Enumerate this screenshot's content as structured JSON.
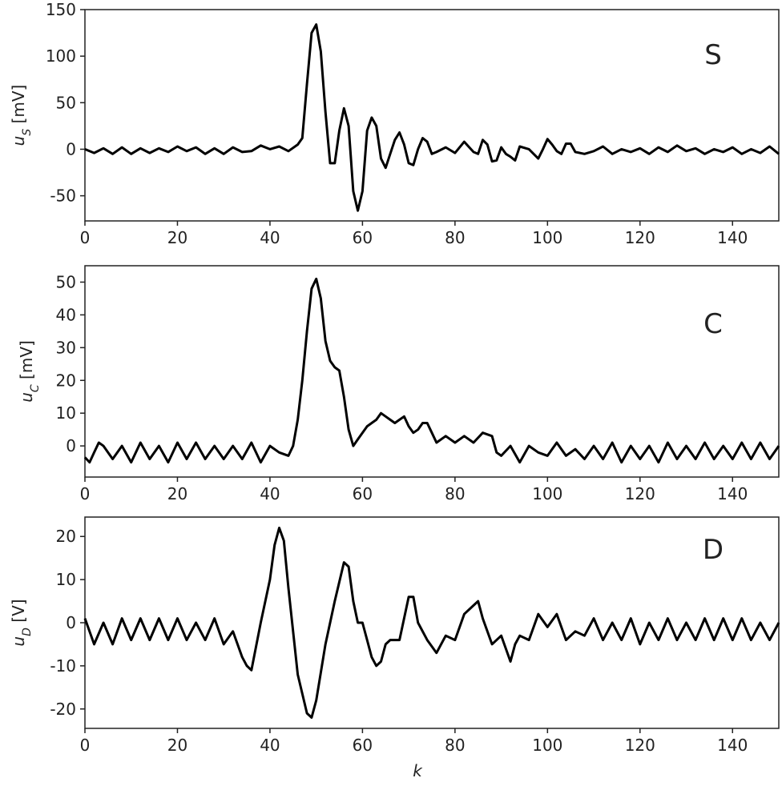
{
  "chart_data": [
    {
      "type": "line",
      "panel_tag": "S",
      "ylabel_symbol": "u",
      "ylabel_sub": "S",
      "ylabel_unit": " [mV]",
      "xlim": [
        0,
        150
      ],
      "ylim": [
        -77,
        150
      ],
      "xticks": [
        0,
        20,
        40,
        60,
        80,
        100,
        120,
        140
      ],
      "yticks": [
        -50,
        0,
        50,
        100,
        150
      ],
      "grid": false,
      "color": "#000000",
      "series": [
        {
          "x": [
            0,
            2,
            4,
            6,
            8,
            10,
            12,
            14,
            16,
            18,
            20,
            22,
            24,
            26,
            28,
            30,
            32,
            34,
            36,
            38,
            40,
            42,
            44,
            46,
            47,
            48,
            49,
            50,
            51,
            52,
            53,
            54,
            55,
            56,
            57,
            58,
            59,
            60,
            61,
            62,
            63,
            64,
            65,
            66,
            67,
            68,
            69,
            70,
            71,
            72,
            73,
            74,
            75,
            76,
            78,
            80,
            82,
            84,
            85,
            86,
            87,
            88,
            89,
            90,
            91,
            92,
            93,
            94,
            96,
            98,
            99,
            100,
            101,
            102,
            103,
            104,
            105,
            106,
            108,
            110,
            112,
            114,
            116,
            118,
            120,
            122,
            124,
            126,
            128,
            130,
            132,
            134,
            136,
            138,
            140,
            142,
            144,
            146,
            148,
            150
          ],
          "y": [
            0,
            -4,
            1,
            -5,
            2,
            -5,
            1,
            -4,
            1,
            -3,
            3,
            -2,
            2,
            -5,
            1,
            -5,
            2,
            -3,
            -2,
            4,
            0,
            3,
            -2,
            5,
            12,
            70,
            125,
            134,
            105,
            40,
            -15,
            -15,
            20,
            44,
            25,
            -45,
            -66,
            -45,
            20,
            34,
            25,
            -10,
            -20,
            -5,
            10,
            18,
            5,
            -15,
            -17,
            0,
            12,
            8,
            -5,
            -3,
            2,
            -4,
            8,
            -3,
            -5,
            10,
            5,
            -13,
            -12,
            2,
            -5,
            -8,
            -12,
            3,
            0,
            -10,
            0,
            11,
            5,
            -2,
            -5,
            6,
            6,
            -3,
            -5,
            -2,
            3,
            -5,
            0,
            -3,
            1,
            -5,
            2,
            -3,
            4,
            -2,
            1,
            -5,
            0,
            -3,
            2,
            -5,
            0,
            -4,
            3,
            -5
          ]
        }
      ]
    },
    {
      "type": "line",
      "panel_tag": "C",
      "ylabel_symbol": "u",
      "ylabel_sub": "C",
      "ylabel_unit": " [mV]",
      "xlim": [
        0,
        150
      ],
      "ylim": [
        -9.5,
        55
      ],
      "xticks": [
        0,
        20,
        40,
        60,
        80,
        100,
        120,
        140
      ],
      "yticks": [
        0,
        10,
        20,
        30,
        40,
        50
      ],
      "grid": false,
      "color": "#000000",
      "series": [
        {
          "x": [
            0,
            1,
            2,
            3,
            4,
            6,
            8,
            10,
            12,
            14,
            16,
            18,
            20,
            22,
            24,
            26,
            28,
            30,
            32,
            34,
            36,
            38,
            40,
            42,
            44,
            45,
            46,
            47,
            48,
            49,
            50,
            51,
            52,
            53,
            54,
            55,
            56,
            57,
            58,
            59,
            60,
            61,
            62,
            63,
            64,
            65,
            66,
            67,
            68,
            69,
            70,
            71,
            72,
            73,
            74,
            75,
            76,
            78,
            80,
            82,
            84,
            86,
            88,
            89,
            90,
            92,
            94,
            96,
            98,
            100,
            102,
            104,
            106,
            108,
            110,
            112,
            114,
            116,
            118,
            120,
            122,
            124,
            126,
            128,
            130,
            132,
            134,
            136,
            138,
            140,
            142,
            144,
            146,
            148,
            150
          ],
          "y": [
            -3.5,
            -5,
            -2,
            1,
            0,
            -4,
            0,
            -5,
            1,
            -4,
            0,
            -5,
            1,
            -4,
            1,
            -4,
            0,
            -4,
            0,
            -4,
            1,
            -5,
            0,
            -2,
            -3,
            0,
            8,
            20,
            35,
            48,
            51,
            45,
            32,
            26,
            24,
            23,
            15,
            5,
            0,
            2,
            4,
            6,
            7,
            8,
            10,
            9,
            8,
            7,
            8,
            9,
            6,
            4,
            5,
            7,
            7,
            4,
            1,
            3,
            1,
            3,
            1,
            4,
            3,
            -2,
            -3,
            0,
            -5,
            0,
            -2,
            -3,
            1,
            -3,
            -1,
            -4,
            0,
            -4,
            1,
            -5,
            0,
            -4,
            0,
            -5,
            1,
            -4,
            0,
            -4,
            1,
            -4,
            0,
            -4,
            1,
            -4,
            1,
            -4,
            0
          ]
        }
      ]
    },
    {
      "type": "line",
      "panel_tag": "D",
      "ylabel_symbol": "u",
      "ylabel_sub": "D",
      "ylabel_unit": " [V]",
      "xlim": [
        0,
        150
      ],
      "ylim": [
        -24.5,
        24.5
      ],
      "xticks": [
        0,
        20,
        40,
        60,
        80,
        100,
        120,
        140
      ],
      "yticks": [
        -20,
        -10,
        0,
        10,
        20
      ],
      "grid": false,
      "color": "#000000",
      "series": [
        {
          "x": [
            0,
            2,
            4,
            6,
            8,
            10,
            12,
            14,
            16,
            18,
            20,
            22,
            24,
            26,
            28,
            30,
            32,
            34,
            35,
            36,
            38,
            40,
            41,
            42,
            43,
            44,
            46,
            48,
            49,
            50,
            52,
            54,
            56,
            57,
            58,
            59,
            60,
            61,
            62,
            63,
            64,
            65,
            66,
            67,
            68,
            70,
            71,
            72,
            74,
            76,
            78,
            80,
            82,
            84,
            85,
            86,
            88,
            90,
            92,
            93,
            94,
            96,
            98,
            100,
            102,
            104,
            106,
            108,
            110,
            112,
            114,
            116,
            118,
            120,
            122,
            124,
            126,
            128,
            130,
            132,
            134,
            136,
            138,
            140,
            142,
            144,
            146,
            148,
            150
          ],
          "y": [
            1,
            -5,
            0,
            -5,
            1,
            -4,
            1,
            -4,
            1,
            -4,
            1,
            -4,
            0,
            -4,
            1,
            -5,
            -2,
            -8,
            -10,
            -11,
            0,
            10,
            18,
            22,
            19,
            8,
            -12,
            -21,
            -22,
            -18,
            -5,
            5,
            14,
            13,
            5,
            0,
            0,
            -4,
            -8,
            -10,
            -9,
            -5,
            -4,
            -4,
            -4,
            6,
            6,
            0,
            -4,
            -7,
            -3,
            -4,
            2,
            4,
            5,
            1,
            -5,
            -3,
            -9,
            -5,
            -3,
            -4,
            2,
            -1,
            2,
            -4,
            -2,
            -3,
            1,
            -4,
            0,
            -4,
            1,
            -5,
            0,
            -4,
            1,
            -4,
            0,
            -4,
            1,
            -4,
            1,
            -4,
            1,
            -4,
            0,
            -4,
            0
          ]
        }
      ]
    }
  ],
  "xlabel": "k"
}
